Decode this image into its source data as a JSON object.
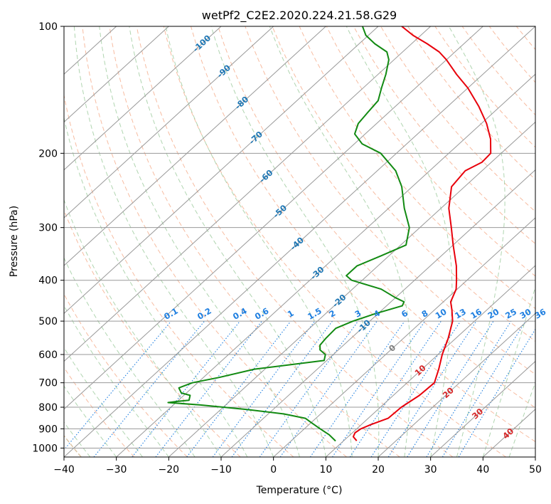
{
  "chart_data": {
    "type": "skew-t",
    "title": "wetPf2_C2E2.2020.224.21.58.G29",
    "xlabel": "Temperature (°C)",
    "ylabel": "Pressure (hPa)",
    "xlim": [
      -40,
      50
    ],
    "ylim": [
      1050,
      100
    ],
    "x_ticks": [
      "−40",
      "−30",
      "−20",
      "−10",
      "0",
      "10",
      "20",
      "30",
      "40",
      "50"
    ],
    "y_ticks": [
      100,
      200,
      300,
      400,
      500,
      600,
      700,
      800,
      900,
      1000
    ],
    "grid": true,
    "colors": {
      "temperature": "#e8000b",
      "dewpoint": "#128a12",
      "isotherm": "#999999",
      "dry_adiabat": "#f4a582",
      "moist_adiabat": "#9ccb9c",
      "mixing_ratio": "#1f7fe0",
      "upper_label": "#1f77b4",
      "lower_label": "#d62728",
      "zero_label": "#808080",
      "outer_adiabat": "#d2b48c"
    },
    "series": [
      {
        "key": "temperature",
        "points": [
          [
            961,
            12.5
          ],
          [
            940,
            11.0
          ],
          [
            920,
            10.5
          ],
          [
            900,
            10.8
          ],
          [
            880,
            11.8
          ],
          [
            850,
            13.8
          ],
          [
            800,
            14.0
          ],
          [
            750,
            15.0
          ],
          [
            700,
            15.2
          ],
          [
            650,
            13.2
          ],
          [
            600,
            10.8
          ],
          [
            550,
            8.6
          ],
          [
            500,
            5.8
          ],
          [
            470,
            3.3
          ],
          [
            450,
            1.4
          ],
          [
            420,
            -0.2
          ],
          [
            400,
            -2.0
          ],
          [
            370,
            -5.0
          ],
          [
            330,
            -10.0
          ],
          [
            300,
            -14.0
          ],
          [
            270,
            -18.5
          ],
          [
            240,
            -22.5
          ],
          [
            220,
            -23.2
          ],
          [
            210,
            -21.8
          ],
          [
            200,
            -22.0
          ],
          [
            185,
            -25.0
          ],
          [
            170,
            -29.0
          ],
          [
            155,
            -34.0
          ],
          [
            140,
            -40.0
          ],
          [
            130,
            -45.0
          ],
          [
            120,
            -50.0
          ],
          [
            115,
            -53.0
          ],
          [
            110,
            -57.0
          ],
          [
            105,
            -61.5
          ],
          [
            100,
            -65.5
          ]
        ]
      },
      {
        "key": "dewpoint",
        "points": [
          [
            962,
            8.5
          ],
          [
            930,
            6.0
          ],
          [
            900,
            3.0
          ],
          [
            870,
            0.0
          ],
          [
            850,
            -2.0
          ],
          [
            830,
            -7.0
          ],
          [
            810,
            -15.0
          ],
          [
            790,
            -25.0
          ],
          [
            780,
            -31.5
          ],
          [
            775,
            -30.0
          ],
          [
            770,
            -28.0
          ],
          [
            750,
            -28.8
          ],
          [
            740,
            -31.0
          ],
          [
            720,
            -32.5
          ],
          [
            700,
            -31.0
          ],
          [
            680,
            -27.0
          ],
          [
            650,
            -22.0
          ],
          [
            620,
            -10.5
          ],
          [
            600,
            -11.5
          ],
          [
            585,
            -13.5
          ],
          [
            570,
            -14.5
          ],
          [
            550,
            -14.8
          ],
          [
            520,
            -15.0
          ],
          [
            500,
            -13.2
          ],
          [
            480,
            -10.5
          ],
          [
            460,
            -7.0
          ],
          [
            450,
            -7.5
          ],
          [
            440,
            -10.0
          ],
          [
            420,
            -14.5
          ],
          [
            400,
            -22.0
          ],
          [
            390,
            -24.0
          ],
          [
            370,
            -24.0
          ],
          [
            350,
            -21.5
          ],
          [
            330,
            -19.0
          ],
          [
            300,
            -22.0
          ],
          [
            270,
            -27.0
          ],
          [
            240,
            -32.0
          ],
          [
            220,
            -36.5
          ],
          [
            200,
            -43.0
          ],
          [
            190,
            -48.5
          ],
          [
            180,
            -52.0
          ],
          [
            170,
            -53.5
          ],
          [
            160,
            -54.0
          ],
          [
            150,
            -54.5
          ],
          [
            140,
            -56.5
          ],
          [
            130,
            -58.5
          ],
          [
            120,
            -61.0
          ],
          [
            115,
            -63.0
          ],
          [
            110,
            -67.0
          ],
          [
            105,
            -70.5
          ],
          [
            100,
            -73.0
          ]
        ]
      }
    ],
    "annotations": {
      "upper_isotherm_labels": [
        {
          "text": "-100",
          "p": 110,
          "t": -100
        },
        {
          "text": "-90",
          "p": 128,
          "t": -90
        },
        {
          "text": "-80",
          "p": 152,
          "t": -80
        },
        {
          "text": "-70",
          "p": 184,
          "t": -70
        },
        {
          "text": "-60",
          "p": 227,
          "t": -60
        },
        {
          "text": "-50",
          "p": 275,
          "t": -50
        },
        {
          "text": "-40",
          "p": 328,
          "t": -40
        },
        {
          "text": "-30",
          "p": 385,
          "t": -30
        },
        {
          "text": "-20",
          "p": 448,
          "t": -20
        },
        {
          "text": "-10",
          "p": 515,
          "t": -10
        }
      ],
      "lower_isotherm_labels": [
        {
          "text": "0",
          "p": 580,
          "t": 0,
          "color": "zero_label"
        },
        {
          "text": "10",
          "p": 655,
          "t": 10,
          "color": "lower_label"
        },
        {
          "text": "20",
          "p": 740,
          "t": 20,
          "color": "lower_label"
        },
        {
          "text": "30",
          "p": 830,
          "t": 30,
          "color": "lower_label"
        },
        {
          "text": "40",
          "p": 925,
          "t": 40,
          "color": "lower_label"
        }
      ],
      "mixing_ratio_labels": [
        {
          "text": "0.1",
          "w": 0.1
        },
        {
          "text": "0.2",
          "w": 0.2
        },
        {
          "text": "0.4",
          "w": 0.4
        },
        {
          "text": "0.6",
          "w": 0.6
        },
        {
          "text": "1",
          "w": 1
        },
        {
          "text": "1.5",
          "w": 1.5
        },
        {
          "text": "2",
          "w": 2
        },
        {
          "text": "3",
          "w": 3
        },
        {
          "text": "4",
          "w": 4
        },
        {
          "text": "6",
          "w": 6
        },
        {
          "text": "8",
          "w": 8
        },
        {
          "text": "10",
          "w": 10
        },
        {
          "text": "13",
          "w": 13
        },
        {
          "text": "16",
          "w": 16
        },
        {
          "text": "20",
          "w": 20
        },
        {
          "text": "25",
          "w": 25
        },
        {
          "text": "30",
          "w": 30
        },
        {
          "text": "36",
          "w": 36
        }
      ]
    }
  }
}
